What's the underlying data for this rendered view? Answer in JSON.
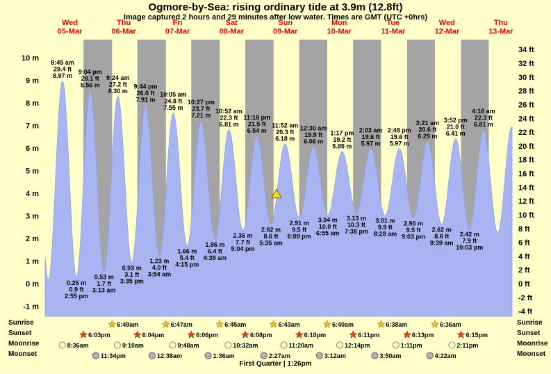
{
  "title": "Ogmore-by-Sea: rising  ordinary tide at 3.9m (12.8ft)",
  "subtitle": "Image captured 2 hours and 29 minutes after low water. Times are GMT (UTC +0hrs)",
  "days": [
    {
      "weekday": "Wed",
      "date": "05-Mar"
    },
    {
      "weekday": "Thu",
      "date": "06-Mar"
    },
    {
      "weekday": "Fri",
      "date": "07-Mar"
    },
    {
      "weekday": "Sat",
      "date": "08-Mar"
    },
    {
      "weekday": "Sun",
      "date": "09-Mar"
    },
    {
      "weekday": "Mon",
      "date": "10-Mar"
    },
    {
      "weekday": "Tue",
      "date": "11-Mar"
    },
    {
      "weekday": "Wed",
      "date": "12-Mar"
    },
    {
      "weekday": "Thu",
      "date": "13-Mar"
    }
  ],
  "chart_data": {
    "type": "area",
    "x_axis": {
      "unit": "time",
      "range": "Wed 05-Mar to Thu 13-Mar"
    },
    "y_axis_left": {
      "unit": "m",
      "ticks": [
        10,
        9,
        8,
        7,
        6,
        5,
        4,
        3,
        2,
        1,
        0,
        -1
      ]
    },
    "y_axis_right": {
      "unit": "ft",
      "ticks": [
        34,
        32,
        30,
        28,
        26,
        24,
        22,
        20,
        18,
        16,
        14,
        12,
        10,
        8,
        6,
        4,
        2,
        0,
        -2,
        -4
      ]
    },
    "tide_extremes": [
      {
        "type": "high",
        "day": 0,
        "time": "8:45 am",
        "height_ft": 29.4,
        "height_m": 8.97
      },
      {
        "type": "low",
        "day": 0,
        "time": "2:55 pm",
        "height_ft": 0.9,
        "height_m": 0.26
      },
      {
        "type": "high",
        "day": 0,
        "time": "9:04 pm",
        "height_ft": 28.1,
        "height_m": 8.56
      },
      {
        "type": "low",
        "day": 1,
        "time": "3:13 am",
        "height_ft": 1.7,
        "height_m": 0.53
      },
      {
        "type": "high",
        "day": 1,
        "time": "9:24 am",
        "height_ft": 27.2,
        "height_m": 8.3
      },
      {
        "type": "low",
        "day": 1,
        "time": "3:35 pm",
        "height_ft": 3.1,
        "height_m": 0.93
      },
      {
        "type": "high",
        "day": 1,
        "time": "9:44 pm",
        "height_ft": 26.0,
        "height_m": 7.91
      },
      {
        "type": "low",
        "day": 2,
        "time": "3:54 am",
        "height_ft": 4.0,
        "height_m": 1.23
      },
      {
        "type": "high",
        "day": 2,
        "time": "10:05 am",
        "height_ft": 24.8,
        "height_m": 7.55
      },
      {
        "type": "low",
        "day": 2,
        "time": "4:15 pm",
        "height_ft": 5.4,
        "height_m": 1.66
      },
      {
        "type": "high",
        "day": 2,
        "time": "10:27 pm",
        "height_ft": 23.7,
        "height_m": 7.21
      },
      {
        "type": "low",
        "day": 3,
        "time": "4:39 am",
        "height_ft": 6.4,
        "height_m": 1.96
      },
      {
        "type": "high",
        "day": 3,
        "time": "10:52 am",
        "height_ft": 22.3,
        "height_m": 6.81
      },
      {
        "type": "low",
        "day": 3,
        "time": "5:04 pm",
        "height_ft": 7.7,
        "height_m": 2.36
      },
      {
        "type": "high",
        "day": 3,
        "time": "11:18 pm",
        "height_ft": 21.5,
        "height_m": 6.54
      },
      {
        "type": "low",
        "day": 4,
        "time": "5:35 am",
        "height_ft": 8.6,
        "height_m": 2.62
      },
      {
        "type": "high",
        "day": 4,
        "time": "11:52 am",
        "height_ft": 20.3,
        "height_m": 6.18
      },
      {
        "type": "low",
        "day": 4,
        "time": "6:09 pm",
        "height_ft": 9.5,
        "height_m": 2.91
      },
      {
        "type": "high",
        "day": 5,
        "time": "12:30 am",
        "height_ft": 19.9,
        "height_m": 6.06
      },
      {
        "type": "low",
        "day": 5,
        "time": "6:55 am",
        "height_ft": 10.0,
        "height_m": 3.04
      },
      {
        "type": "high",
        "day": 5,
        "time": "1:17 pm",
        "height_ft": 19.2,
        "height_m": 5.85
      },
      {
        "type": "low",
        "day": 5,
        "time": "7:38 pm",
        "height_ft": 10.3,
        "height_m": 3.13
      },
      {
        "type": "high",
        "day": 6,
        "time": "2:03 am",
        "height_ft": 19.6,
        "height_m": 5.97
      },
      {
        "type": "low",
        "day": 6,
        "time": "8:28 am",
        "height_ft": 9.9,
        "height_m": 3.01
      },
      {
        "type": "high",
        "day": 6,
        "time": "2:48 pm",
        "height_ft": 19.6,
        "height_m": 5.97
      },
      {
        "type": "low",
        "day": 6,
        "time": "9:03 pm",
        "height_ft": 9.5,
        "height_m": 2.9
      },
      {
        "type": "high",
        "day": 7,
        "time": "3:21 am",
        "height_ft": 20.6,
        "height_m": 6.29
      },
      {
        "type": "low",
        "day": 7,
        "time": "9:39 am",
        "height_ft": 8.6,
        "height_m": 2.62
      },
      {
        "type": "high",
        "day": 7,
        "time": "3:52 pm",
        "height_ft": 21.0,
        "height_m": 6.41
      },
      {
        "type": "low",
        "day": 7,
        "time": "10:03 pm",
        "height_ft": 7.9,
        "height_m": 2.42
      },
      {
        "type": "high",
        "day": 8,
        "time": "4:16 am",
        "height_ft": 22.3,
        "height_m": 6.81
      }
    ],
    "current_tide_marker": {
      "height_m": 3.9,
      "height_ft": 12.8,
      "minutes_after_low_water": 149
    }
  },
  "astro": {
    "rows": [
      {
        "label": "Sunrise",
        "icon": "sunrise-icon",
        "color": "#f2c21c",
        "events": [
          {
            "day": 1,
            "time": "6:49am"
          },
          {
            "day": 2,
            "time": "6:47am"
          },
          {
            "day": 3,
            "time": "6:45am"
          },
          {
            "day": 4,
            "time": "6:43am"
          },
          {
            "day": 5,
            "time": "6:40am"
          },
          {
            "day": 6,
            "time": "6:38am"
          },
          {
            "day": 7,
            "time": "6:36am"
          }
        ]
      },
      {
        "label": "Sunset",
        "icon": "sunset-icon",
        "color": "#e2491b",
        "events": [
          {
            "day": 0,
            "time": "6:03pm"
          },
          {
            "day": 1,
            "time": "6:04pm"
          },
          {
            "day": 2,
            "time": "6:06pm"
          },
          {
            "day": 3,
            "time": "6:08pm"
          },
          {
            "day": 4,
            "time": "6:10pm"
          },
          {
            "day": 5,
            "time": "6:11pm"
          },
          {
            "day": 6,
            "time": "6:13pm"
          },
          {
            "day": 7,
            "time": "6:15pm"
          }
        ]
      },
      {
        "label": "Moonrise",
        "icon": "moonrise-icon",
        "color": "#ffffae",
        "events": [
          {
            "day": 0,
            "time": "8:36am"
          },
          {
            "day": 1,
            "time": "9:10am"
          },
          {
            "day": 2,
            "time": "9:48am"
          },
          {
            "day": 3,
            "time": "10:32am"
          },
          {
            "day": 4,
            "time": "11:20am"
          },
          {
            "day": 5,
            "time": "12:14pm"
          },
          {
            "day": 6,
            "time": "1:11pm"
          },
          {
            "day": 7,
            "time": "2:11pm"
          }
        ]
      },
      {
        "label": "Moonset",
        "icon": "moonset-icon",
        "color": "#b2b2b2",
        "events": [
          {
            "day": 0,
            "time": "11:34pm"
          },
          {
            "day": 2,
            "time": "12:38am"
          },
          {
            "day": 3,
            "time": "1:36am"
          },
          {
            "day": 4,
            "time": "2:27am"
          },
          {
            "day": 5,
            "time": "3:12am"
          },
          {
            "day": 6,
            "time": "3:50am"
          },
          {
            "day": 7,
            "time": "4:22am"
          }
        ]
      }
    ],
    "moon_phase": "First Quarter | 1:26pm"
  },
  "colors": {
    "background": "#ffffca",
    "night_band": "#a4a4a4",
    "tide_fill": "#a9b5f2",
    "tide_stroke": "#8fa0e8",
    "day_label": "#ee0000",
    "marker_fill": "#ffe000",
    "marker_stroke": "#7a5c00"
  }
}
